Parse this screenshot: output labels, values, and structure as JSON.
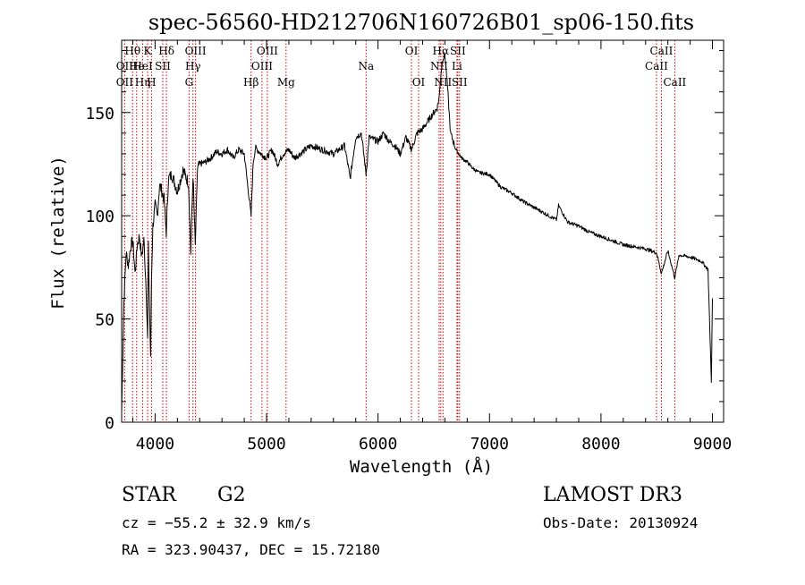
{
  "chart_data": {
    "type": "line",
    "title": "spec-56560-HD212706N160726B01_sp06-150.fits",
    "xlabel": "Wavelength (Å)",
    "ylabel": "Flux (relative)",
    "xlim": [
      3700,
      9100
    ],
    "ylim": [
      0,
      185
    ],
    "xticks": [
      4000,
      5000,
      6000,
      7000,
      8000,
      9000
    ],
    "yticks": [
      0,
      50,
      100,
      150
    ],
    "series": [
      {
        "name": "flux",
        "x": [
          3700,
          3720,
          3740,
          3760,
          3780,
          3800,
          3820,
          3840,
          3860,
          3880,
          3900,
          3920,
          3933,
          3940,
          3960,
          3968,
          3980,
          4000,
          4020,
          4040,
          4060,
          4080,
          4100,
          4120,
          4150,
          4200,
          4250,
          4300,
          4320,
          4340,
          4360,
          4380,
          4400,
          4450,
          4500,
          4550,
          4600,
          4650,
          4700,
          4750,
          4800,
          4861,
          4880,
          4900,
          4950,
          5000,
          5050,
          5100,
          5150,
          5200,
          5250,
          5300,
          5400,
          5500,
          5600,
          5700,
          5750,
          5800,
          5850,
          5893,
          5920,
          6000,
          6050,
          6100,
          6150,
          6200,
          6250,
          6300,
          6350,
          6400,
          6450,
          6500,
          6530,
          6550,
          6563,
          6580,
          6600,
          6620,
          6650,
          6700,
          6750,
          6800,
          6850,
          6900,
          7000,
          7100,
          7200,
          7300,
          7400,
          7500,
          7600,
          7620,
          7700,
          7800,
          7900,
          8000,
          8100,
          8200,
          8300,
          8400,
          8500,
          8542,
          8600,
          8662,
          8700,
          8800,
          8900,
          8960,
          8990,
          9000
        ],
        "values": [
          5,
          58,
          82,
          76,
          85,
          88,
          72,
          86,
          90,
          80,
          88,
          65,
          40,
          85,
          30,
          70,
          95,
          105,
          100,
          115,
          112,
          108,
          92,
          118,
          120,
          112,
          122,
          116,
          82,
          120,
          85,
          122,
          125,
          126,
          128,
          131,
          130,
          132,
          128,
          132,
          130,
          100,
          126,
          133,
          130,
          128,
          132,
          125,
          130,
          132,
          128,
          130,
          134,
          132,
          130,
          134,
          118,
          138,
          140,
          120,
          138,
          136,
          140,
          136,
          134,
          130,
          138,
          132,
          140,
          142,
          146,
          150,
          152,
          158,
          168,
          176,
          178,
          165,
          140,
          132,
          128,
          126,
          123,
          121,
          120,
          114,
          111,
          107,
          104,
          101,
          98,
          105,
          97,
          95,
          92,
          90,
          88,
          86,
          85,
          84,
          82,
          72,
          83,
          70,
          81,
          80,
          78,
          74,
          20,
          60
        ]
      }
    ],
    "lines": [
      {
        "label": "Hθ",
        "x": 3798,
        "row": 0
      },
      {
        "label": "OII",
        "x": 3727,
        "row": 1
      },
      {
        "label": "OII",
        "x": 3727,
        "row": 2
      },
      {
        "label": "He",
        "x": 3835,
        "row": 1
      },
      {
        "label": "Hη",
        "x": 3889,
        "row": 2
      },
      {
        "label": "K",
        "x": 3933,
        "row": 0
      },
      {
        "label": "HeI",
        "x": 3889,
        "row": 1
      },
      {
        "label": "H",
        "x": 3968,
        "row": 2
      },
      {
        "label": "Hδ",
        "x": 4102,
        "row": 0
      },
      {
        "label": "SII",
        "x": 4069,
        "row": 1
      },
      {
        "label": "OIII",
        "x": 4363,
        "row": 0
      },
      {
        "label": "Hγ",
        "x": 4340,
        "row": 1
      },
      {
        "label": "G",
        "x": 4305,
        "row": 2
      },
      {
        "label": "Hβ",
        "x": 4861,
        "row": 2
      },
      {
        "label": "OIII",
        "x": 5007,
        "row": 0
      },
      {
        "label": "OIII",
        "x": 4959,
        "row": 1
      },
      {
        "label": "Mg",
        "x": 5175,
        "row": 2
      },
      {
        "label": "Na",
        "x": 5893,
        "row": 1
      },
      {
        "label": "OI",
        "x": 6300,
        "row": 0
      },
      {
        "label": "OI",
        "x": 6364,
        "row": 2
      },
      {
        "label": "Hα",
        "x": 6563,
        "row": 0
      },
      {
        "label": "SII",
        "x": 6716,
        "row": 0
      },
      {
        "label": "NII",
        "x": 6548,
        "row": 1
      },
      {
        "label": "Li",
        "x": 6708,
        "row": 1
      },
      {
        "label": "NII",
        "x": 6583,
        "row": 2
      },
      {
        "label": "SII",
        "x": 6731,
        "row": 2
      },
      {
        "label": "CaII",
        "x": 8542,
        "row": 0
      },
      {
        "label": "CaII",
        "x": 8498,
        "row": 1
      },
      {
        "label": "CaII",
        "x": 8662,
        "row": 2
      }
    ]
  },
  "info": {
    "object_class": "STAR",
    "subclass": "G2",
    "survey": "LAMOST DR3",
    "redshift_line": "cz = −55.2 ± 32.9 km/s",
    "obs_date": "Obs-Date: 20130924",
    "coords": "RA = 323.90437, DEC =  15.72180"
  },
  "colors": {
    "axis": "#000000",
    "spectrum": "#000000",
    "line_marker": "#cc0000"
  }
}
